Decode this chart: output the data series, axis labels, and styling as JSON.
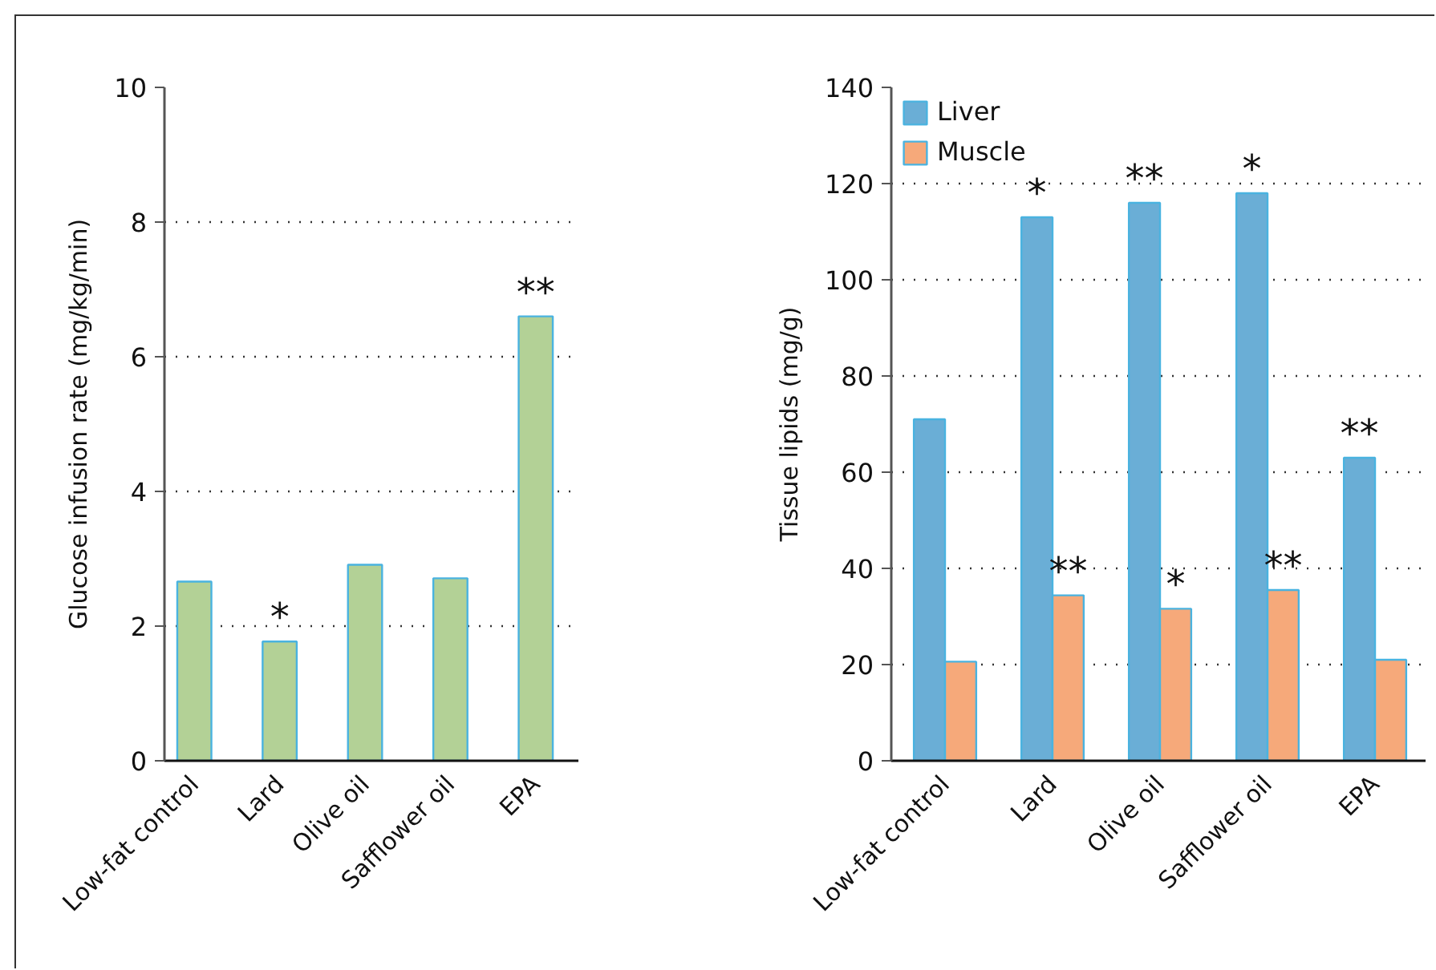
{
  "chart_data": [
    {
      "type": "bar",
      "ylabel": "Glucose infusion rate (mg/kg/min)",
      "categories": [
        "Low-fat control",
        "Lard",
        "Olive oil",
        "Safflower oil",
        "EPA"
      ],
      "values": [
        2.66,
        1.77,
        2.91,
        2.71,
        6.6
      ],
      "color": "#b3d196",
      "ylim": [
        0,
        10
      ],
      "yticks": [
        0,
        2,
        4,
        6,
        8,
        10
      ],
      "grid": "y",
      "annotations": [
        {
          "text": "*",
          "x": "Lard",
          "y": 1.77
        },
        {
          "text": "**",
          "x": "EPA",
          "y": 6.6
        }
      ]
    },
    {
      "type": "bar",
      "ylabel": "Tissue lipids (mg/g)",
      "categories": [
        "Low-fat control",
        "Lard",
        "Olive oil",
        "Safflower oil",
        "EPA"
      ],
      "series": [
        {
          "name": "Liver",
          "color": "#6aaed6",
          "values": [
            71,
            113,
            116,
            118,
            63
          ]
        },
        {
          "name": "Muscle",
          "color": "#f6a97a",
          "values": [
            20.6,
            34.4,
            31.6,
            35.5,
            21.0
          ]
        }
      ],
      "ylim": [
        0,
        140
      ],
      "yticks": [
        0,
        20,
        40,
        60,
        80,
        100,
        120,
        140
      ],
      "grid": "y",
      "legend": "top left",
      "annotations": [
        {
          "text": "*",
          "x": "Lard",
          "y": 113
        },
        {
          "text": "**",
          "x": "Lard",
          "y": 34.4
        },
        {
          "text": "**",
          "x": "Olive oil",
          "y": 116
        },
        {
          "text": "*",
          "x": "Olive oil",
          "y": 31.6
        },
        {
          "text": "*",
          "x": "Safflower oil",
          "y": 118
        },
        {
          "text": "**",
          "x": "Safflower oil",
          "y": 35.5
        },
        {
          "text": "**",
          "x": "EPA",
          "y": 63
        }
      ]
    }
  ]
}
